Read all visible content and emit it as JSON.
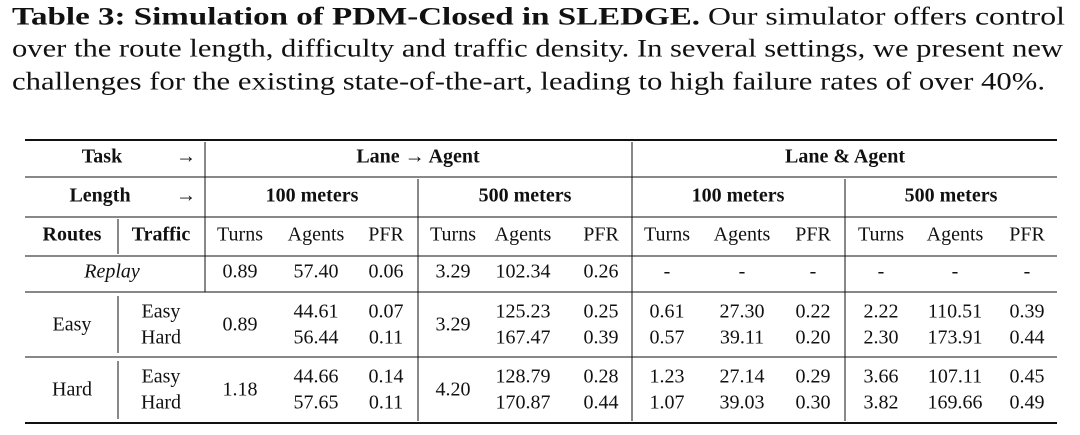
{
  "caption": {
    "label": "Table 3: Simulation of PDM-Closed in SLEDGE.",
    "lines": [
      "Our simulator offers control",
      "over the route length, difficulty and traffic density. In several settings, we present new",
      "challenges for the existing state-of-the-art, leading to high failure rates of over 40%."
    ]
  },
  "table": {
    "task_row": {
      "label": "Task",
      "arrow": "→",
      "groups": [
        "Lane → Agent",
        "Lane & Agent"
      ]
    },
    "length_row": {
      "label": "Length",
      "arrow": "→",
      "groups": [
        "100 meters",
        "500 meters",
        "100 meters",
        "500 meters"
      ]
    },
    "column_headers": {
      "routes": "Routes",
      "traffic": "Traffic",
      "metrics": [
        "Turns",
        "Agents",
        "PFR",
        "Turns",
        "Agents",
        "PFR",
        "Turns",
        "Agents",
        "PFR",
        "Turns",
        "Agents",
        "PFR"
      ]
    },
    "replay_row": {
      "label": "Replay",
      "values": [
        "0.89",
        "57.40",
        "0.06",
        "3.29",
        "102.34",
        "0.26",
        "-",
        "-",
        "-",
        "-",
        "-",
        "-"
      ]
    },
    "groups": [
      {
        "route": "Easy",
        "turns": [
          "0.89",
          "3.29"
        ],
        "rows": [
          {
            "traffic": "Easy",
            "cells": [
              "44.61",
              "0.07",
              "125.23",
              "0.25",
              "0.61",
              "27.30",
              "0.22",
              "2.22",
              "110.51",
              "0.39"
            ]
          },
          {
            "traffic": "Hard",
            "cells": [
              "56.44",
              "0.11",
              "167.47",
              "0.39",
              "0.57",
              "39.11",
              "0.20",
              "2.30",
              "173.91",
              "0.44"
            ]
          }
        ]
      },
      {
        "route": "Hard",
        "turns": [
          "1.18",
          "4.20"
        ],
        "rows": [
          {
            "traffic": "Easy",
            "cells": [
              "44.66",
              "0.14",
              "128.79",
              "0.28",
              "1.23",
              "27.14",
              "0.29",
              "3.66",
              "107.11",
              "0.45"
            ]
          },
          {
            "traffic": "Hard",
            "cells": [
              "57.65",
              "0.11",
              "170.87",
              "0.44",
              "1.07",
              "39.03",
              "0.30",
              "3.82",
              "169.66",
              "0.49"
            ]
          }
        ]
      }
    ]
  }
}
